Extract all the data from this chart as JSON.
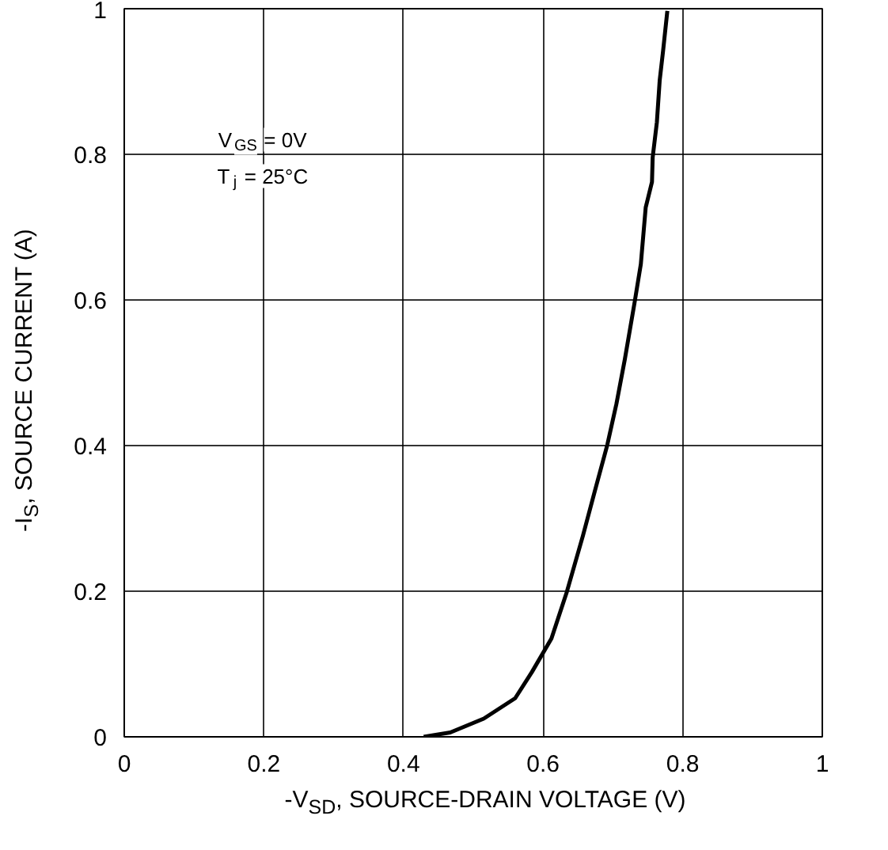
{
  "chart_data": {
    "type": "line",
    "xlabel": "-V$_{SD}$, SOURCE-DRAIN VOLTAGE (V)",
    "ylabel": "-I$_{S}$, SOURCE CURRENT (A)",
    "annotations": [
      "V$_{GS}$ = 0V",
      "T$_{j}$ = 25°C"
    ],
    "series": [
      {
        "color": "#000000",
        "x": [
          0.429,
          0.467,
          0.515,
          0.56,
          0.584,
          0.612,
          0.634,
          0.657,
          0.674,
          0.692,
          0.705,
          0.717,
          0.731,
          0.74,
          0.747,
          0.756,
          0.757,
          0.763,
          0.767,
          0.772,
          0.778
        ],
        "values": [
          0,
          0.006,
          0.025,
          0.053,
          0.089,
          0.135,
          0.199,
          0.276,
          0.337,
          0.401,
          0.457,
          0.518,
          0.596,
          0.649,
          0.727,
          0.762,
          0.796,
          0.844,
          0.901,
          0.943,
          0.997
        ]
      }
    ],
    "xlim": [
      0,
      1
    ],
    "ylim": [
      0,
      1
    ],
    "xticks": [
      0,
      0.2,
      0.4,
      0.6,
      0.8,
      1
    ],
    "yticks": [
      0,
      0.2,
      0.4,
      0.6,
      0.8,
      1
    ],
    "grid": true,
    "line_style": "solid"
  }
}
